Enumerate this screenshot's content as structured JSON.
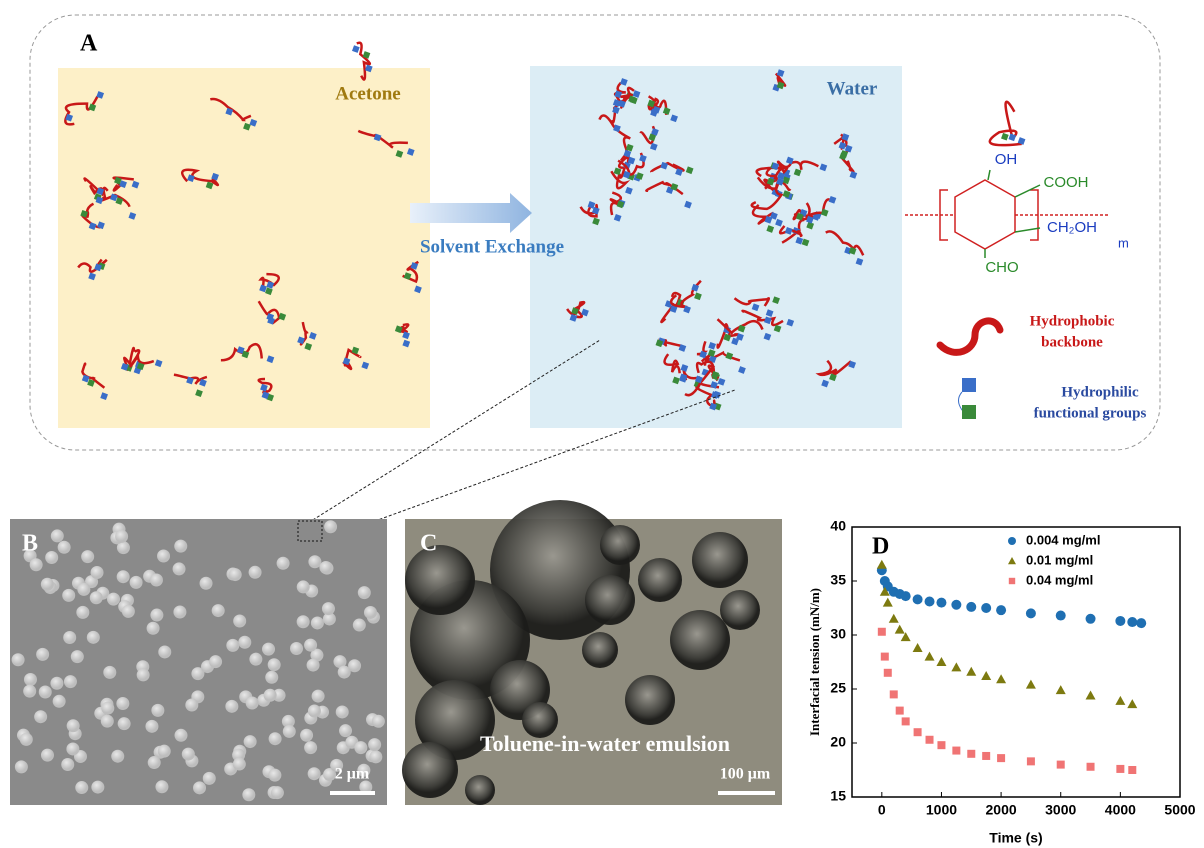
{
  "panel_a": {
    "label": "A",
    "left_solvent": "Acetone",
    "right_solvent": "Water",
    "arrow_label": "Solvent Exchange",
    "structure": {
      "oh": "OH",
      "cooh": "COOH",
      "ch2oh": "CH₂OH",
      "cho": "CHO",
      "repeat": "m"
    },
    "legend": {
      "backbone_1": "Hydrophobic",
      "backbone_2": "backbone",
      "groups_1": "Hydrophilic",
      "groups_2": "functional groups"
    }
  },
  "panel_b": {
    "label": "B",
    "scale": "2 μm"
  },
  "panel_c": {
    "label": "C",
    "caption": "Toluene-in-water emulsion",
    "scale": "100 μm"
  },
  "chart_data": {
    "type": "scatter",
    "panel_label": "D",
    "x_label": "Time (s)",
    "y_label": "Interfacial tension (mN/m)",
    "x": [
      0,
      50,
      100,
      200,
      300,
      400,
      600,
      800,
      1000,
      1250,
      1500,
      1750,
      2000,
      2500,
      3000,
      3500,
      4000,
      4200,
      4350
    ],
    "series": [
      {
        "name": "0.004 mg/ml",
        "color": "#1f6fb2",
        "marker": "circle",
        "values": [
          36,
          35,
          34.5,
          34,
          33.8,
          33.6,
          33.3,
          33.1,
          33,
          32.8,
          32.6,
          32.5,
          32.3,
          32,
          31.8,
          31.5,
          31.3,
          31.2,
          31.1
        ]
      },
      {
        "name": "0.01 mg/ml",
        "color": "#7d7a10",
        "marker": "triangle",
        "values": [
          36.5,
          34,
          33,
          31.5,
          30.5,
          29.8,
          28.8,
          28,
          27.5,
          27,
          26.6,
          26.2,
          25.9,
          25.4,
          24.9,
          24.4,
          23.9,
          23.6,
          null
        ]
      },
      {
        "name": "0.04 mg/ml",
        "color": "#f07474",
        "marker": "square",
        "values": [
          30.3,
          28,
          26.5,
          24.5,
          23,
          22,
          21,
          20.3,
          19.8,
          19.3,
          19,
          18.8,
          18.6,
          18.3,
          18,
          17.8,
          17.6,
          17.5,
          null
        ]
      }
    ],
    "xlim": [
      -500,
      5000
    ],
    "xticks": [
      0,
      1000,
      2000,
      3000,
      4000,
      5000
    ],
    "ylim": [
      15,
      40
    ],
    "yticks": [
      15,
      20,
      25,
      30,
      35,
      40
    ],
    "legend": "upper right"
  }
}
